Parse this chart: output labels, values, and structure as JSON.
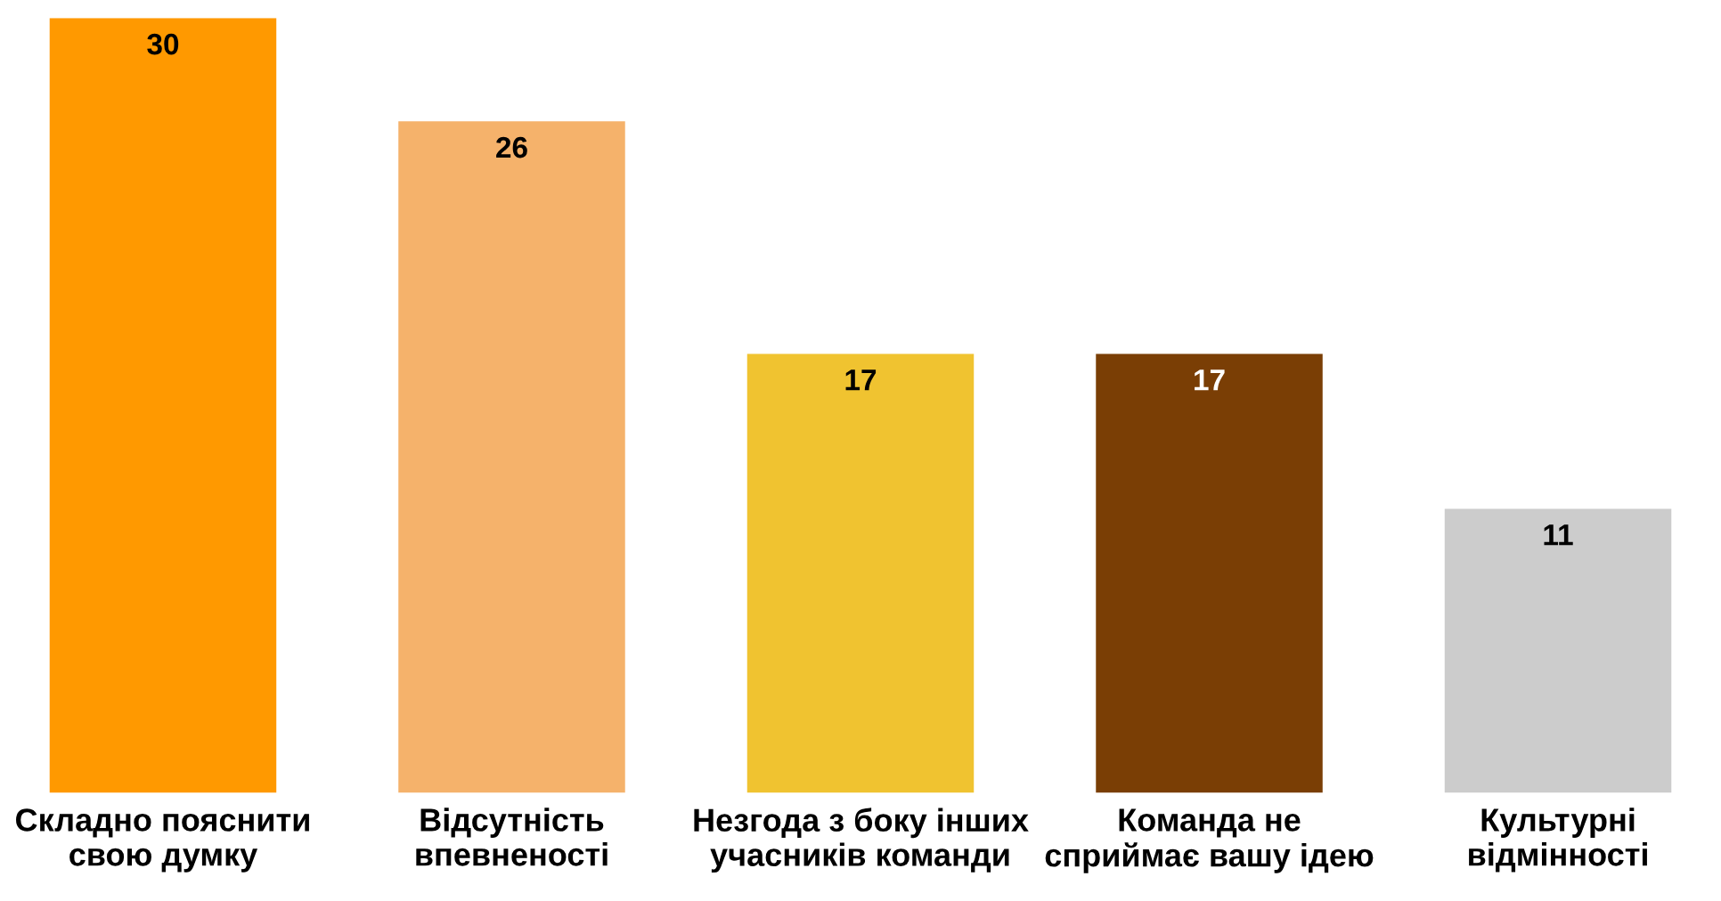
{
  "chart_data": {
    "type": "bar",
    "categories": [
      "Складно пояснити\nсвою думку",
      "Відсутність\nвпевненості",
      "Незгода з боку інших\nучасників команди",
      "Команда не\nсприймає вашу ідею",
      "Культурні\nвідмінності"
    ],
    "values": [
      30,
      26,
      17,
      17,
      11
    ],
    "colors": [
      "#ff9900",
      "#f5b26b",
      "#f0c330",
      "#7a3e05",
      "#cccccc"
    ],
    "data_labels": true
  }
}
